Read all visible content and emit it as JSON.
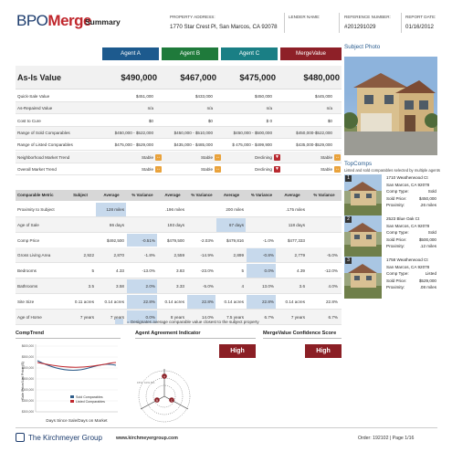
{
  "header": {
    "logo_prefix": "BPO",
    "logo_suffix": "Merge",
    "title": "Summary",
    "property_label": "PROPERTY ADDRESS:",
    "property_value": "1770 Star Crest Pl, San Marcos, CA 92078",
    "lender_label": "LENDER NAME:",
    "lender_value": "",
    "reference_label": "REFERENCE NUMBER:",
    "reference_value": "#201291029",
    "report_date_label": "REPORT DATE:",
    "report_date_value": "01/16/2012"
  },
  "agents": {
    "a": "Agent A",
    "b": "Agent B",
    "c": "Agent C",
    "mv": "MergeValue",
    "colors": {
      "a": "#1d5a8e",
      "b": "#1f7a3b",
      "c": "#1a7f85",
      "mv": "#8e2028"
    }
  },
  "asis": {
    "label": "As-Is Value",
    "a": "$490,000",
    "b": "$467,000",
    "c": "$475,000",
    "mv": "$480,000"
  },
  "rows": [
    {
      "label": "Quick-Sale Value",
      "a": "$451,000",
      "b": "$433,000",
      "c": "$450,000",
      "mv": "$445,000"
    },
    {
      "label": "As-Repaired Value",
      "a": "n/a",
      "b": "n/a",
      "c": "n/a",
      "mv": "n/a"
    },
    {
      "label": "Cost to Cure",
      "a": "$0",
      "b": "$0",
      "c": "$ 0",
      "mv": "$0"
    },
    {
      "label": "Range of Sold Comparables",
      "a": "$450,000 - $522,000",
      "b": "$450,000 - $510,000",
      "c": "$450,000 - $500,000",
      "mv": "$450,000-$522,000"
    },
    {
      "label": "Range of Listed Comparables",
      "a": "$475,000 - $529,000",
      "b": "$435,000 - $485,000",
      "c": "$ 475,000 - $499,900",
      "mv": "$435,000-$529,000"
    },
    {
      "label": "Neighborhood Market Trend",
      "a": "Stable",
      "b": "Stable",
      "c": "Declining",
      "mv": "Stable"
    },
    {
      "label": "Overall Market Trend",
      "a": "Stable",
      "b": "Stable",
      "c": "Declining",
      "mv": "Stable"
    }
  ],
  "comp_table": {
    "headers": [
      "Comparable Metric",
      "Subject",
      "Average",
      "% Variance",
      "Average",
      "% Variance",
      "Average",
      "% Variance",
      "Average",
      "% Variance"
    ],
    "rows": [
      {
        "label": "Proximity to Subject",
        "subject": "",
        "cells": [
          "128 miles",
          "",
          ".196 miles",
          "",
          "200 miles",
          "",
          ".175 miles",
          ""
        ],
        "hl": [
          0
        ]
      },
      {
        "label": "Age of Sale",
        "subject": "",
        "cells": [
          "86 days",
          "",
          "193 days",
          "",
          "67 days",
          "",
          "118 days",
          ""
        ],
        "hl": [
          4
        ]
      },
      {
        "label": "Comp Price",
        "subject": "",
        "cells": [
          "$492,500",
          "-0.51%",
          "$479,500",
          "-2.03%",
          "$479,816",
          "-1.0%",
          "$477,333",
          ""
        ],
        "hl": [
          1
        ]
      },
      {
        "label": "Gross Living Area",
        "subject": "2,922",
        "cells": [
          "2,870",
          "-1.8%",
          "2,559",
          "-14.9%",
          "2,899",
          "-0.8%",
          "2,779",
          "-5.0%"
        ],
        "hl": [
          5
        ]
      },
      {
        "label": "Bedrooms",
        "subject": "5",
        "cells": [
          "4.33",
          "-13.0%",
          "3.83",
          "-23.0%",
          "5",
          "0.0%",
          "4.39",
          "-12.0%"
        ],
        "hl": [
          5
        ]
      },
      {
        "label": "Bathrooms",
        "subject": "3.5",
        "cells": [
          "3.58",
          "2.0%",
          "3.33",
          "-5.0%",
          "4",
          "13.0%",
          "3.6",
          "4.0%"
        ],
        "hl": [
          1
        ]
      },
      {
        "label": "Site Size",
        "subject": "0.11 acres",
        "cells": [
          "0.14 acres",
          "22.8%",
          "0.14 acres",
          "22.8%",
          "0.14 acres",
          "22.8%",
          "0.14 acres",
          "22.8%"
        ],
        "hl": [
          1,
          3,
          5
        ]
      },
      {
        "label": "Age of Home",
        "subject": "7 years",
        "cells": [
          "7 years",
          "0.0%",
          "8 years",
          "14.0%",
          "7.5 years",
          "6.7%",
          "7 years",
          "6.7%"
        ],
        "hl": [
          1
        ]
      }
    ]
  },
  "legend_text": "= Designates average comparable value closest to the subject property",
  "subject_photo_title": "Subject Photo",
  "topcomps": {
    "title": "TopComps",
    "subtitle": "Listed and sold comparables selected by multiple agents",
    "items": [
      {
        "num": "1",
        "address": "1710 Weatherwood Ct",
        "city": "San Marcos, CA 92078",
        "type_label": "Comp Type:",
        "type": "Sold",
        "price_label": "Sold Price:",
        "price": "$450,000",
        "prox_label": "Proximity:",
        "prox": ".26 miles"
      },
      {
        "num": "2",
        "address": "2523 Blue Oak Ct",
        "city": "San Marcos, CA 92078",
        "type_label": "Comp Type:",
        "type": "Sold",
        "price_label": "Sold Price:",
        "price": "$500,000",
        "prox_label": "Proximity:",
        "prox": ".12 miles"
      },
      {
        "num": "3",
        "address": "1758 Weatherwood Ct",
        "city": "San Marcos, CA 92078",
        "type_label": "Comp Type:",
        "type": "Listed",
        "price_label": "Sold Price:",
        "price": "$529,000",
        "prox_label": "Proximity:",
        "prox": ".08 miles"
      }
    ]
  },
  "comptrend": {
    "title": "CompTrend",
    "ylabel": "Sale Price/List Price ($)",
    "xlabel": "Days Since Sale/Days on Market",
    "yticks": [
      "$600,000",
      "$550,000",
      "$500,000",
      "$450,000",
      "$400,000",
      "$350,000",
      "$300,000"
    ],
    "legend": [
      "Sold Comparables",
      "Listed Comparables"
    ],
    "colors": {
      "sold": "#2f5d8a",
      "listed": "#c0272d"
    }
  },
  "agreement": {
    "title": "Agent Agreement Indicator",
    "badge": "High",
    "radar_labels": [
      "A",
      "B",
      "C"
    ],
    "ring_labels": [
      "15%",
      "10%",
      "5%"
    ]
  },
  "confidence": {
    "title": "MergeValue Confidence Score",
    "badge": "High"
  },
  "footer": {
    "company_prefix": "The Kirchmeyer Group",
    "url": "www.kirchmeyergroup.com",
    "order": "Order: 192102  |  Page 1/16"
  }
}
